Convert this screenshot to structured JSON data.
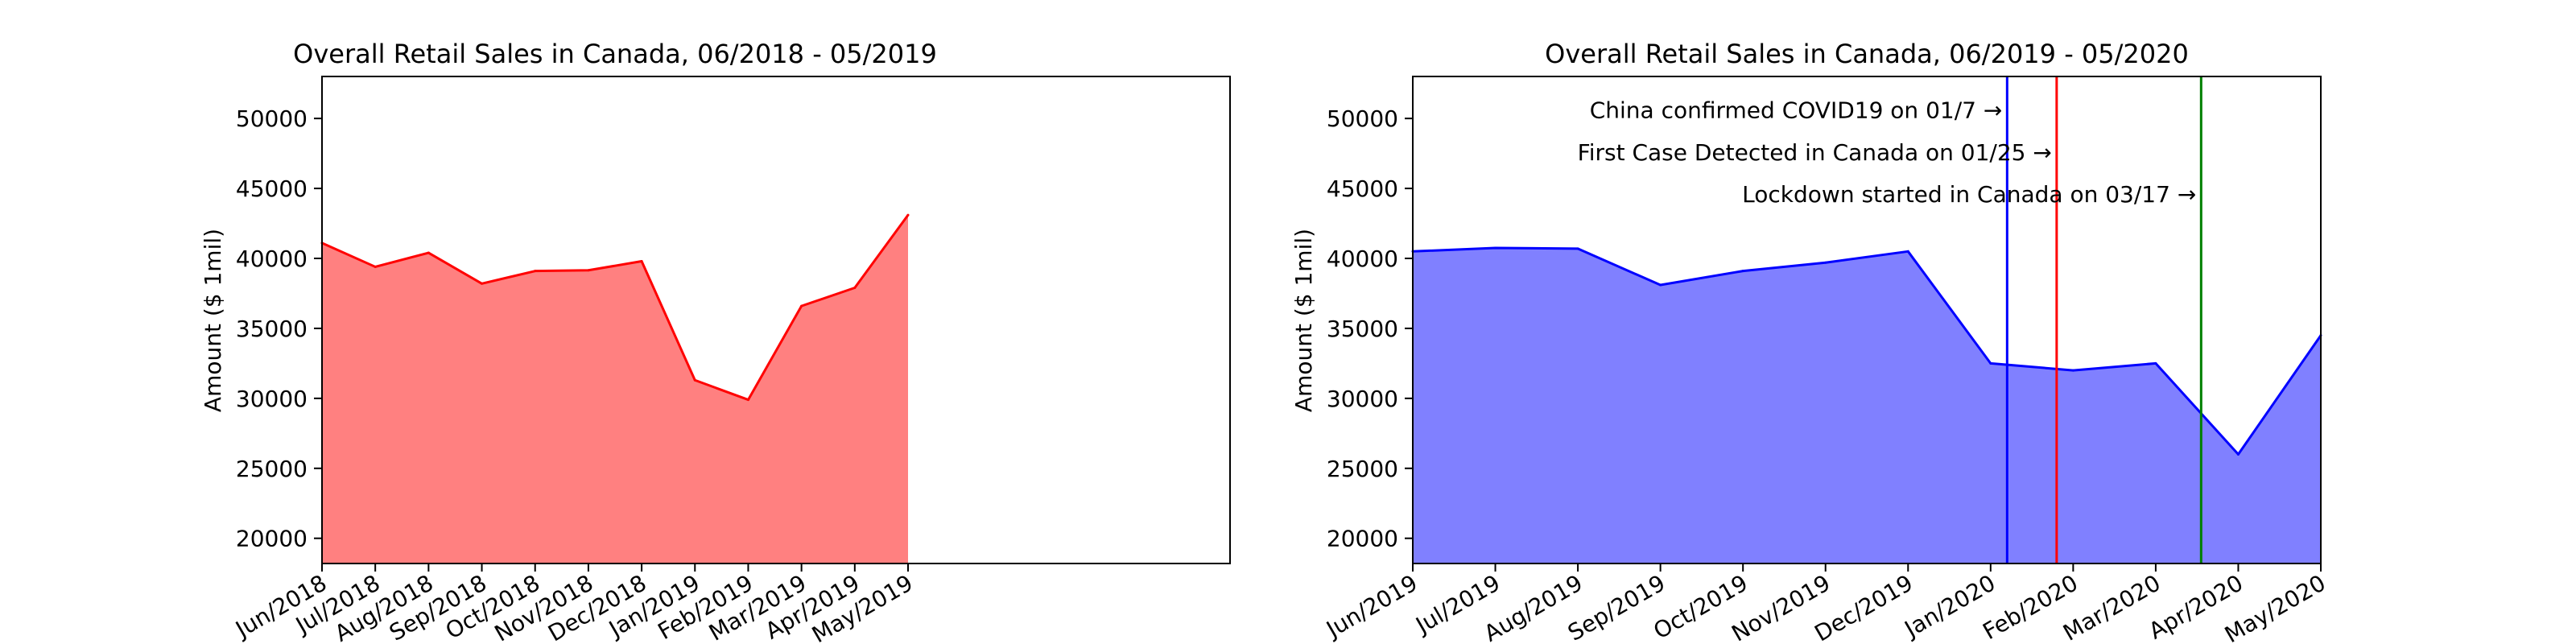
{
  "chart_data": [
    {
      "type": "area",
      "title": "Overall Retail Sales in Canada, 06/2018 - 05/2019",
      "xlabel": "",
      "ylabel": "Amount ($ 1mil)",
      "categories": [
        "Jun/2018",
        "Jul/2018",
        "Aug/2018",
        "Sep/2018",
        "Oct/2018",
        "Nov/2018",
        "Dec/2018",
        "Jan/2019",
        "Feb/2019",
        "Mar/2019",
        "Apr/2019",
        "May/2019"
      ],
      "values": [
        41100,
        39400,
        40400,
        38200,
        39100,
        39150,
        39800,
        31300,
        29900,
        36600,
        37900,
        43100
      ],
      "y_ticks": [
        20000,
        25000,
        30000,
        35000,
        40000,
        45000,
        50000
      ],
      "ylim": [
        18200,
        53000
      ],
      "grid": false,
      "colors": {
        "line": "#ff0000",
        "fill": "#ff8080"
      },
      "annotations": []
    },
    {
      "type": "area",
      "title": "Overall Retail Sales in Canada, 06/2019 - 05/2020",
      "xlabel": "",
      "ylabel": "Amount ($ 1mil)",
      "categories": [
        "Jun/2019",
        "Jul/2019",
        "Aug/2019",
        "Sep/2019",
        "Oct/2019",
        "Nov/2019",
        "Dec/2019",
        "Jan/2020",
        "Feb/2020",
        "Mar/2020",
        "Apr/2020",
        "May/2020"
      ],
      "values": [
        40500,
        40750,
        40700,
        38100,
        39100,
        39700,
        40500,
        32500,
        32000,
        32500,
        26000,
        34500
      ],
      "y_ticks": [
        20000,
        25000,
        30000,
        35000,
        40000,
        45000,
        50000
      ],
      "ylim": [
        18200,
        53000
      ],
      "grid": false,
      "colors": {
        "line": "#0000ff",
        "fill": "#8080ff"
      },
      "annotations": [
        {
          "text": "China confirmed COVID19 on 01/7 →",
          "x": 7.2,
          "color": "#0000ff",
          "text_y": 50600
        },
        {
          "text": "First Case Detected in Canada on 01/25 →",
          "x": 7.8,
          "color": "#ff0000",
          "text_y": 47600
        },
        {
          "text": "Lockdown started in Canada on 03/17 →",
          "x": 9.55,
          "color": "#008000",
          "text_y": 44600
        }
      ]
    }
  ]
}
